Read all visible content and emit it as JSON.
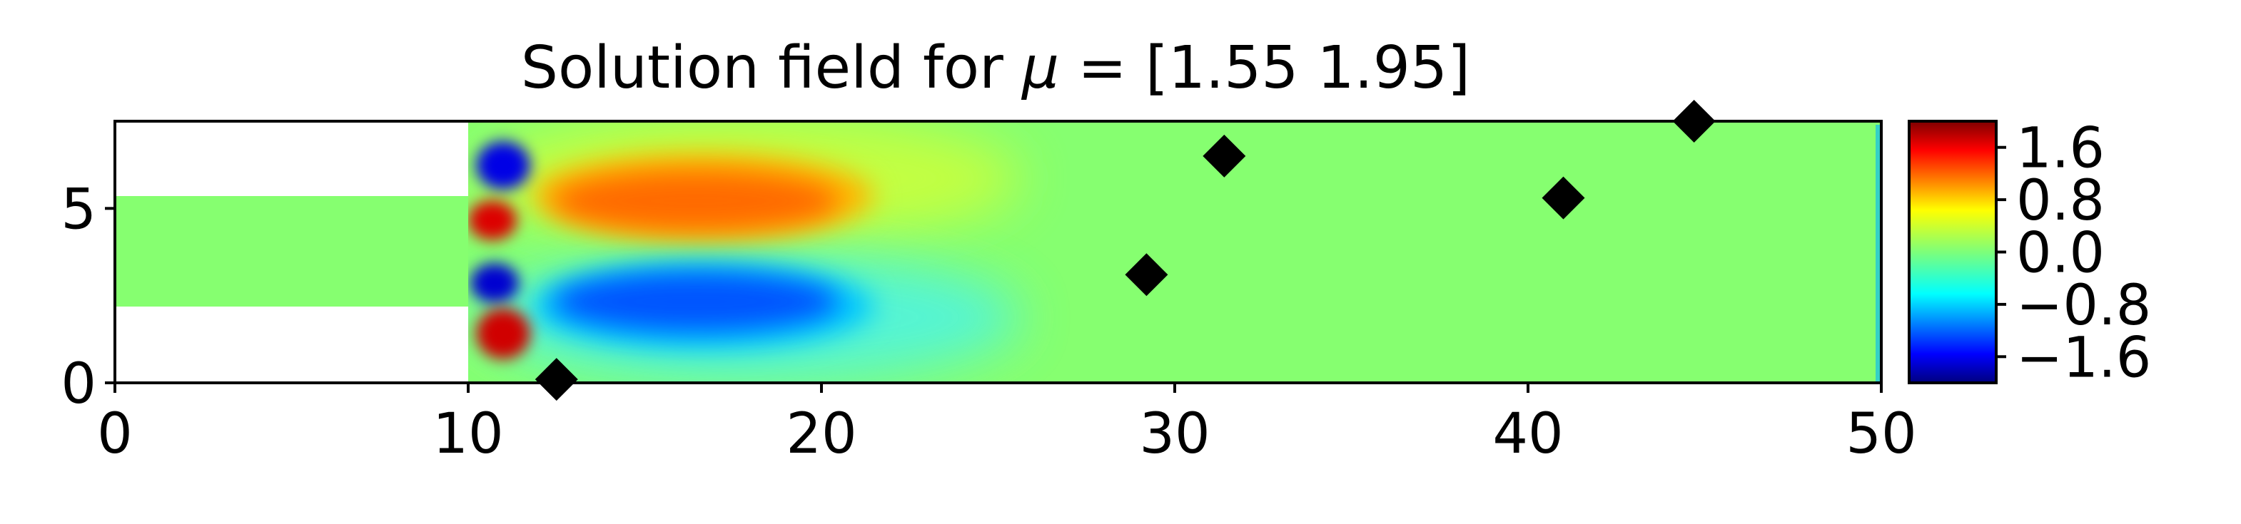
{
  "chart_data": {
    "type": "heatmap",
    "title_prefix": "Solution field for ",
    "title_mu": "μ",
    "title_suffix": " = [1.55 1.95]",
    "xlim": [
      0,
      50
    ],
    "ylim": [
      0,
      7.5
    ],
    "xticks": [
      0,
      10,
      20,
      30,
      40,
      50
    ],
    "yticks": [
      0,
      5
    ],
    "grid": false,
    "colormap": "jet",
    "colorbar": {
      "vmin": -2.0,
      "vmax": 2.0,
      "ticks": [
        1.6,
        0.8,
        0.0,
        -0.8,
        -1.6
      ],
      "tick_labels": [
        "1.6",
        "0.8",
        "0.0",
        "−0.8",
        "−1.6"
      ]
    },
    "domain": {
      "inlet_channel": {
        "x": [
          0,
          10
        ],
        "y": [
          2.2,
          5.3
        ]
      },
      "main_channel": {
        "x": [
          10,
          50
        ],
        "y": [
          0,
          7.5
        ]
      }
    },
    "sensor_markers": {
      "marker": "diamond",
      "color": "#000000",
      "x": [
        12.5,
        29.2,
        31.4,
        41.0,
        44.7
      ],
      "y": [
        0.1,
        3.1,
        6.5,
        5.3,
        7.5
      ]
    },
    "field_features": [
      {
        "name": "upper vortex core",
        "x": 10.9,
        "y": 6.1,
        "value": -1.6
      },
      {
        "name": "upper jet",
        "x": 10.7,
        "y": 4.7,
        "value": 1.7
      },
      {
        "name": "upper wake",
        "x": 16,
        "y": 5.7,
        "value": 1.0
      },
      {
        "name": "lower jet",
        "x": 10.8,
        "y": 2.8,
        "value": -1.7
      },
      {
        "name": "lower wake",
        "x": 16,
        "y": 1.9,
        "value": -1.2
      },
      {
        "name": "lower vortex core",
        "x": 10.9,
        "y": 1.4,
        "value": 1.7
      }
    ],
    "background_value": 0.0
  }
}
